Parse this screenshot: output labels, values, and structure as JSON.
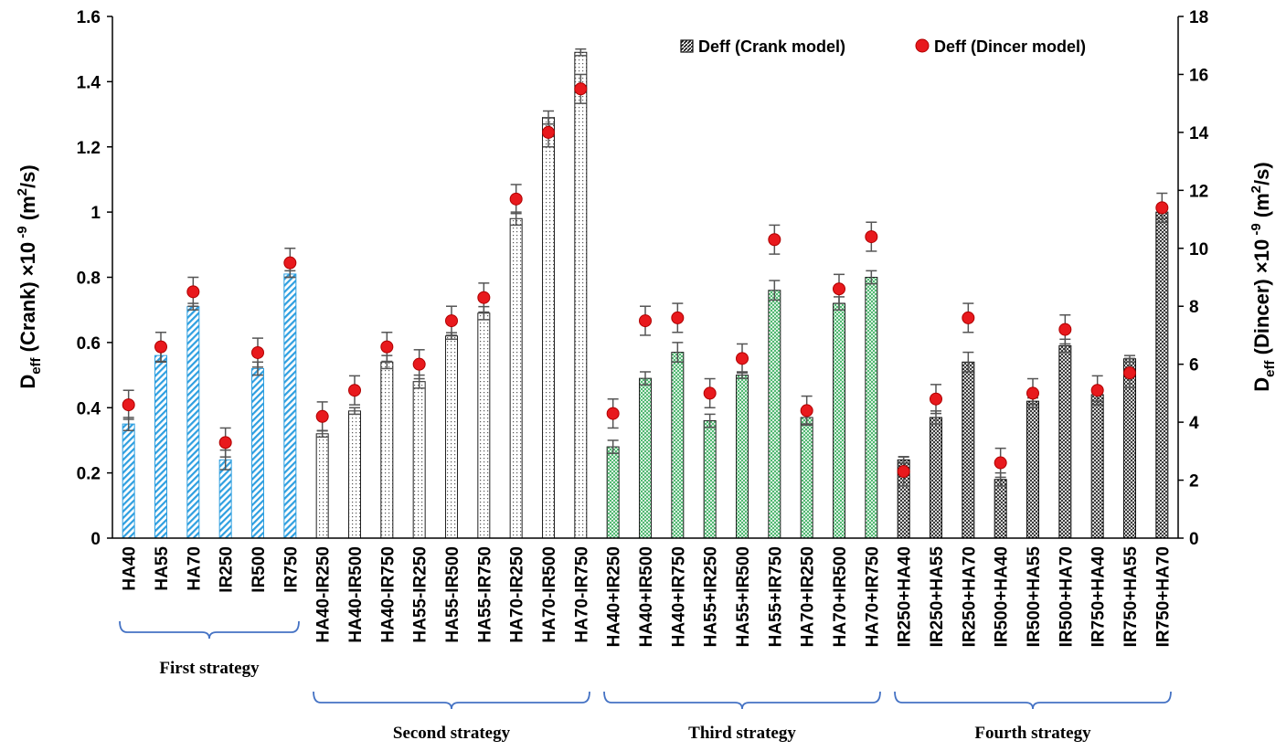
{
  "chart_data": {
    "type": "bar",
    "categories": [
      "HA40",
      "HA55",
      "HA70",
      "IR250",
      "IR500",
      "IR750",
      "HA40-IR250",
      "HA40-IR500",
      "HA40-IR750",
      "HA55-IR250",
      "HA55-IR500",
      "HA55-IR750",
      "HA70-IR250",
      "HA70-IR500",
      "HA70-IR750",
      "HA40+IR250",
      "HA40+IR500",
      "HA40+IR750",
      "HA55+IR250",
      "HA55+IR500",
      "HA55+IR750",
      "HA70+IR250",
      "HA70+IR500",
      "HA70+IR750",
      "IR250+HA40",
      "IR250+HA55",
      "IR250+HA70",
      "IR500+HA40",
      "IR500+HA55",
      "IR500+HA70",
      "IR750+HA40",
      "IR750+HA55",
      "IR750+HA70"
    ],
    "series": [
      {
        "name": "Deff (Crank model)",
        "axis": "left",
        "values": [
          0.35,
          0.56,
          0.71,
          0.24,
          0.52,
          0.81,
          0.32,
          0.39,
          0.54,
          0.48,
          0.62,
          0.69,
          0.98,
          1.29,
          1.49,
          0.28,
          0.49,
          0.57,
          0.36,
          0.5,
          0.76,
          0.37,
          0.72,
          0.8,
          0.24,
          0.37,
          0.54,
          0.18,
          0.42,
          0.59,
          0.44,
          0.55,
          1.0
        ],
        "errors": [
          0.02,
          0.02,
          0.01,
          0.03,
          0.02,
          0.01,
          0.01,
          0.01,
          0.02,
          0.02,
          0.01,
          0.02,
          0.02,
          0.02,
          0.01,
          0.02,
          0.02,
          0.03,
          0.02,
          0.01,
          0.03,
          0.02,
          0.02,
          0.02,
          0.01,
          0.02,
          0.03,
          0.02,
          0.01,
          0.02,
          0.02,
          0.01,
          0.02
        ]
      },
      {
        "name": "Deff (Dincer model)",
        "axis": "right",
        "values": [
          4.6,
          6.6,
          8.5,
          3.3,
          6.4,
          9.5,
          4.2,
          5.1,
          6.6,
          6.0,
          7.5,
          8.3,
          11.7,
          14.0,
          15.5,
          4.3,
          7.5,
          7.6,
          5.0,
          6.2,
          10.3,
          4.4,
          8.6,
          10.4,
          2.3,
          4.8,
          7.6,
          2.6,
          5.0,
          7.2,
          5.1,
          5.7,
          11.4
        ],
        "errors": [
          0.5,
          0.5,
          0.5,
          0.5,
          0.5,
          0.5,
          0.5,
          0.5,
          0.5,
          0.5,
          0.5,
          0.5,
          0.5,
          0.5,
          0.5,
          0.5,
          0.5,
          0.5,
          0.5,
          0.5,
          0.5,
          0.5,
          0.5,
          0.5,
          0.5,
          0.5,
          0.5,
          0.5,
          0.5,
          0.5,
          0.5,
          0.5,
          0.5
        ]
      }
    ],
    "groups": [
      {
        "label": "First strategy",
        "start": 0,
        "end": 5
      },
      {
        "label": "Second strategy",
        "start": 6,
        "end": 14
      },
      {
        "label": "Third strategy",
        "start": 15,
        "end": 23
      },
      {
        "label": "Fourth strategy",
        "start": 24,
        "end": 32
      }
    ],
    "y_left": {
      "label_main": "D",
      "label_sub": "eff",
      "label_rest": " (Crank) ×10",
      "label_exp": " -9",
      "label_unit": " (m",
      "label_unit_exp": "2",
      "label_unit_end": "/s)",
      "range": [
        0,
        1.6
      ],
      "ticks": [
        0,
        0.2,
        0.4,
        0.6,
        0.8,
        1,
        1.2,
        1.4,
        1.6
      ],
      "tick_labels": [
        "0",
        "0.2",
        "0.4",
        "0.6",
        "0.8",
        "1",
        "1.2",
        "1.4",
        "1.6"
      ]
    },
    "y_right": {
      "label_main": "D",
      "label_sub": "eff",
      "label_rest": " (Dincer) ×10",
      "label_exp": " -9",
      "label_unit": " (m",
      "label_unit_exp": "2",
      "label_unit_end": "/s)",
      "range": [
        0,
        18
      ],
      "ticks": [
        0,
        2,
        4,
        6,
        8,
        10,
        12,
        14,
        16,
        18
      ],
      "tick_labels": [
        "0",
        "2",
        "4",
        "6",
        "8",
        "10",
        "12",
        "14",
        "16",
        "18"
      ]
    },
    "legend": {
      "position": "top-right",
      "entries": [
        "Deff (Crank model)",
        "Deff (Dincer model)"
      ]
    },
    "grid": false
  },
  "colors": {
    "first_strategy": "#2e9fe0",
    "second_strategy": "#555555",
    "third_strategy": "#2eaa55",
    "fourth_strategy": "#111111",
    "dincer_marker": "#e8191d",
    "dincer_marker_edge": "#b00000",
    "brace": "#4472c4",
    "error_bar": "#555555"
  }
}
